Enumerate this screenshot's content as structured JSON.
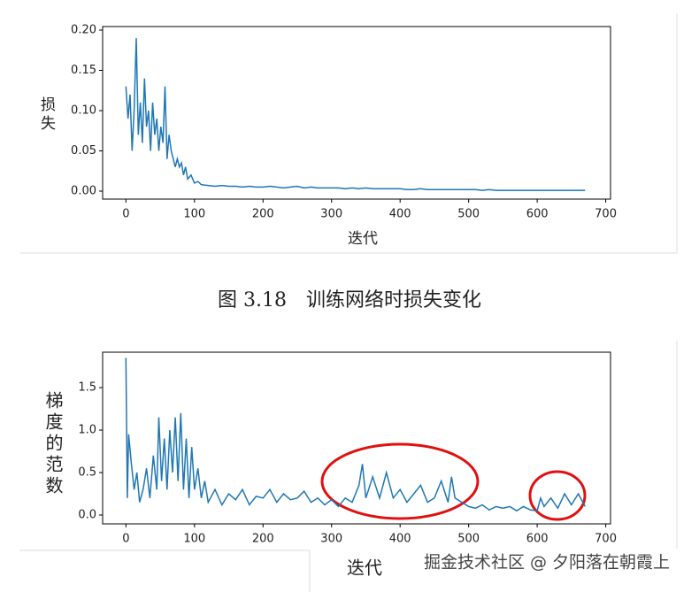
{
  "chart_data": [
    {
      "type": "line",
      "y_label": "损失",
      "x_label": "迭代",
      "color": "#1f77b4",
      "series": [
        {
          "color": "#1f77b4",
          "x": [
            0,
            3,
            6,
            9,
            12,
            15,
            18,
            21,
            24,
            27,
            30,
            33,
            36,
            39,
            42,
            45,
            48,
            51,
            54,
            57,
            60,
            63,
            66,
            69,
            72,
            75,
            78,
            81,
            84,
            87,
            90,
            95,
            100,
            105,
            110,
            120,
            130,
            140,
            150,
            160,
            170,
            180,
            190,
            200,
            210,
            220,
            230,
            240,
            250,
            260,
            270,
            280,
            290,
            300,
            310,
            320,
            330,
            340,
            350,
            360,
            370,
            380,
            390,
            400,
            410,
            420,
            430,
            440,
            450,
            460,
            470,
            480,
            490,
            500,
            510,
            520,
            530,
            540,
            550,
            560,
            570,
            580,
            590,
            600,
            610,
            620,
            630,
            640,
            650,
            660,
            670
          ],
          "values": [
            0.13,
            0.09,
            0.12,
            0.05,
            0.1,
            0.19,
            0.07,
            0.11,
            0.06,
            0.14,
            0.08,
            0.1,
            0.05,
            0.11,
            0.07,
            0.09,
            0.05,
            0.08,
            0.06,
            0.13,
            0.04,
            0.07,
            0.05,
            0.04,
            0.03,
            0.04,
            0.03,
            0.035,
            0.02,
            0.03,
            0.015,
            0.02,
            0.01,
            0.012,
            0.008,
            0.007,
            0.006,
            0.007,
            0.006,
            0.006,
            0.005,
            0.006,
            0.005,
            0.005,
            0.006,
            0.005,
            0.004,
            0.005,
            0.006,
            0.004,
            0.005,
            0.004,
            0.004,
            0.004,
            0.004,
            0.003,
            0.004,
            0.003,
            0.004,
            0.003,
            0.003,
            0.003,
            0.003,
            0.003,
            0.002,
            0.002,
            0.003,
            0.002,
            0.002,
            0.002,
            0.002,
            0.002,
            0.002,
            0.002,
            0.002,
            0.001,
            0.002,
            0.001,
            0.001,
            0.001,
            0.001,
            0.001,
            0.001,
            0.001,
            0.001,
            0.001,
            0.001,
            0.001,
            0.001,
            0.001,
            0.001
          ]
        }
      ],
      "xlim": [
        -34,
        707
      ],
      "xticks": [
        0,
        100,
        200,
        300,
        400,
        500,
        600,
        700
      ],
      "ylim": [
        -0.0099,
        0.2044
      ],
      "yticks": [
        {
          "value": 0,
          "label": "0.00"
        },
        {
          "value": 0.05,
          "label": "0.05"
        },
        {
          "value": 0.1,
          "label": "0.10"
        },
        {
          "value": 0.15,
          "label": "0.15"
        },
        {
          "value": 0.2,
          "label": "0.20"
        }
      ]
    },
    {
      "type": "line",
      "y_label": "梯度的范数",
      "x_label": "迭代",
      "color": "#1f77b4",
      "series": [
        {
          "color": "#1f77b4",
          "x": [
            0,
            2,
            4,
            8,
            12,
            16,
            20,
            25,
            30,
            35,
            40,
            45,
            48,
            52,
            56,
            60,
            64,
            68,
            72,
            76,
            80,
            84,
            88,
            92,
            96,
            100,
            105,
            110,
            115,
            120,
            130,
            140,
            150,
            160,
            170,
            180,
            190,
            200,
            210,
            220,
            230,
            240,
            250,
            260,
            270,
            280,
            290,
            300,
            310,
            320,
            330,
            340,
            345,
            350,
            360,
            370,
            380,
            390,
            400,
            410,
            420,
            430,
            440,
            450,
            460,
            470,
            475,
            480,
            490,
            500,
            510,
            520,
            530,
            540,
            550,
            560,
            570,
            580,
            590,
            600,
            605,
            610,
            620,
            630,
            640,
            650,
            660,
            670
          ],
          "values": [
            1.85,
            0.2,
            0.95,
            0.6,
            0.3,
            0.5,
            0.15,
            0.3,
            0.55,
            0.2,
            0.7,
            0.3,
            1.15,
            0.4,
            0.9,
            0.3,
            1.0,
            0.5,
            1.15,
            0.4,
            1.2,
            0.3,
            0.9,
            0.2,
            0.8,
            0.3,
            0.55,
            0.2,
            0.4,
            0.15,
            0.3,
            0.12,
            0.25,
            0.18,
            0.3,
            0.12,
            0.22,
            0.2,
            0.3,
            0.15,
            0.25,
            0.18,
            0.2,
            0.28,
            0.15,
            0.2,
            0.12,
            0.18,
            0.1,
            0.2,
            0.15,
            0.35,
            0.6,
            0.2,
            0.45,
            0.2,
            0.5,
            0.2,
            0.3,
            0.15,
            0.25,
            0.35,
            0.15,
            0.2,
            0.4,
            0.15,
            0.45,
            0.2,
            0.15,
            0.1,
            0.08,
            0.12,
            0.06,
            0.1,
            0.08,
            0.1,
            0.05,
            0.1,
            0.06,
            0.05,
            0.2,
            0.1,
            0.2,
            0.08,
            0.25,
            0.12,
            0.25,
            0.1
          ]
        }
      ],
      "xlim": [
        -34,
        707
      ],
      "xticks": [
        0,
        100,
        200,
        300,
        400,
        500,
        600,
        700
      ],
      "ylim": [
        -0.104,
        1.917
      ],
      "yticks": [
        {
          "value": 0,
          "label": "0.0"
        },
        {
          "value": 0.5,
          "label": "0.5"
        },
        {
          "value": 1,
          "label": "1.0"
        },
        {
          "value": 1.5,
          "label": "1.5"
        }
      ]
    }
  ],
  "caption": "图 3.18　训练网络时损失变化",
  "watermark": "掘金技术社区 @ 夕阳落在朝霞上"
}
